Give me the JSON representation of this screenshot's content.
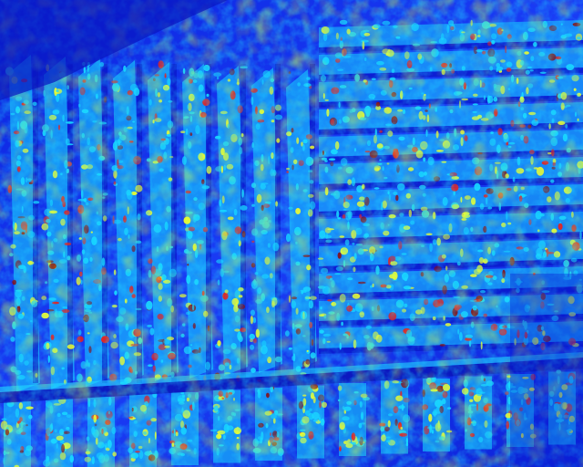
{
  "scene": {
    "description_type": "false-color aerial imagery of orchard/vineyard rows",
    "palette": {
      "deep": "#0a16c8",
      "blue": "#1c4dff",
      "cyan": "#18d8ff",
      "yellow": "#f2ff2a",
      "red": "#e8201c",
      "dark_red": "#8a0c10"
    },
    "regions": [
      {
        "name": "left-vertical-rows",
        "orientation": "vertical",
        "row_count": 9
      },
      {
        "name": "right-horizontal-rows",
        "orientation": "horizontal",
        "row_count": 12
      },
      {
        "name": "bottom-vertical-rows",
        "orientation": "vertical",
        "row_count": 14
      }
    ]
  }
}
